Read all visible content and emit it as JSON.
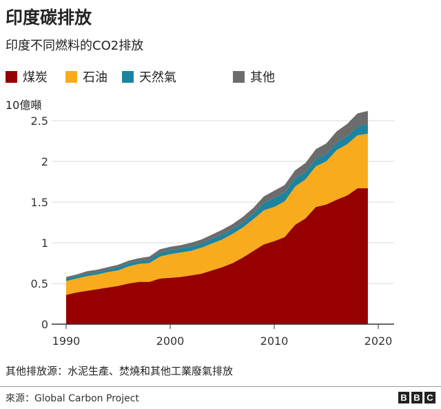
{
  "title": "印度碳排放",
  "subtitle": "印度不同燃料的CO2排放",
  "footnote": "其他排放源：水泥生產、焚燒和其他工業廢氣排放",
  "source": "來源：Global Carbon Project",
  "logo": [
    "B",
    "B",
    "C"
  ],
  "chart_data": {
    "type": "area",
    "stacked": true,
    "ylabel": "10億噸",
    "ylim": [
      0,
      2.7
    ],
    "yticks": [
      0,
      0.5,
      1,
      1.5,
      2,
      2.5
    ],
    "ytick_labels": [
      "0",
      "0.5",
      "1",
      "1.5",
      "2",
      "2.5"
    ],
    "xlim": [
      1989,
      2021
    ],
    "xticks": [
      1990,
      2000,
      2010,
      2020
    ],
    "xtick_labels": [
      "1990",
      "2000",
      "2010",
      "2020"
    ],
    "grid": true,
    "legend_position": "top",
    "x": [
      1990,
      1991,
      1992,
      1993,
      1994,
      1995,
      1996,
      1997,
      1998,
      1999,
      2000,
      2001,
      2002,
      2003,
      2004,
      2005,
      2006,
      2007,
      2008,
      2009,
      2010,
      2011,
      2012,
      2013,
      2014,
      2015,
      2016,
      2017,
      2018,
      2019
    ],
    "series": [
      {
        "name": "煤炭",
        "color": "#960000",
        "values": [
          0.36,
          0.39,
          0.41,
          0.43,
          0.45,
          0.47,
          0.5,
          0.52,
          0.52,
          0.56,
          0.57,
          0.58,
          0.6,
          0.62,
          0.66,
          0.7,
          0.75,
          0.82,
          0.9,
          0.98,
          1.02,
          1.07,
          1.22,
          1.3,
          1.44,
          1.47,
          1.53,
          1.58,
          1.67,
          1.67
        ]
      },
      {
        "name": "石油",
        "color": "#f8ab1c",
        "values": [
          0.17,
          0.17,
          0.18,
          0.18,
          0.19,
          0.19,
          0.21,
          0.22,
          0.23,
          0.27,
          0.29,
          0.3,
          0.3,
          0.32,
          0.33,
          0.34,
          0.36,
          0.37,
          0.39,
          0.42,
          0.42,
          0.44,
          0.47,
          0.48,
          0.5,
          0.53,
          0.61,
          0.63,
          0.65,
          0.67
        ]
      },
      {
        "name": "天然氣",
        "color": "#1d84a0",
        "values": [
          0.03,
          0.03,
          0.03,
          0.03,
          0.03,
          0.04,
          0.04,
          0.04,
          0.04,
          0.05,
          0.05,
          0.05,
          0.05,
          0.05,
          0.06,
          0.06,
          0.06,
          0.06,
          0.07,
          0.09,
          0.11,
          0.11,
          0.1,
          0.09,
          0.09,
          0.09,
          0.09,
          0.1,
          0.11,
          0.12
        ]
      },
      {
        "name": "其他",
        "color": "#6c6c6c",
        "values": [
          0.02,
          0.02,
          0.03,
          0.03,
          0.03,
          0.03,
          0.03,
          0.03,
          0.04,
          0.04,
          0.04,
          0.04,
          0.05,
          0.05,
          0.05,
          0.06,
          0.06,
          0.07,
          0.07,
          0.08,
          0.09,
          0.09,
          0.1,
          0.11,
          0.12,
          0.13,
          0.14,
          0.15,
          0.16,
          0.16
        ]
      }
    ]
  }
}
